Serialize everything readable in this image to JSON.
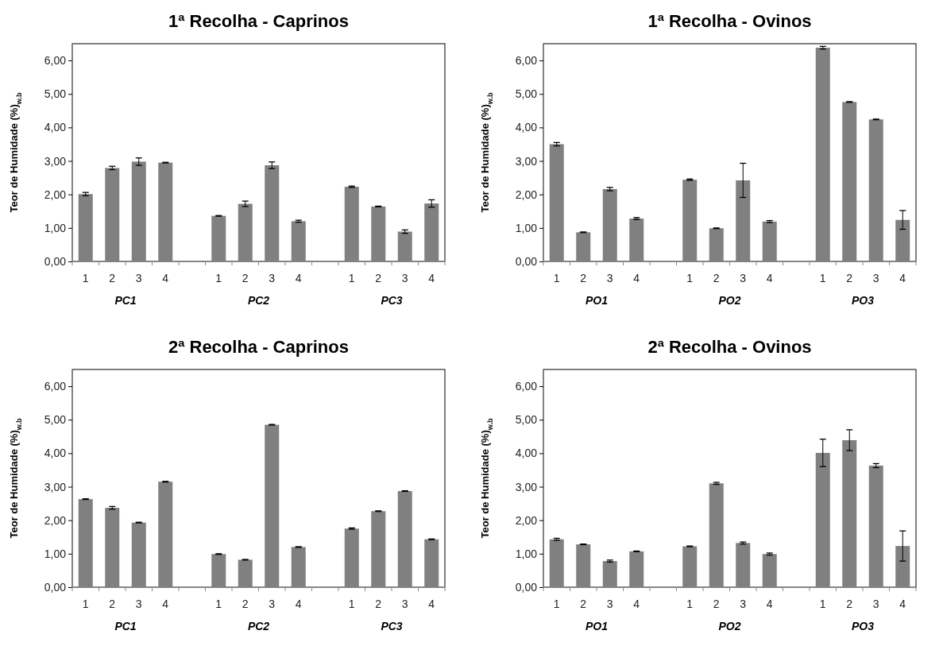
{
  "chart_data": [
    {
      "type": "bar",
      "title": "1ª Recolha - Caprinos",
      "ylabel": "Teor de Humidade (%)$_{w.b}$",
      "categories": [
        "1",
        "2",
        "3",
        "4",
        null,
        "1",
        "2",
        "3",
        "4",
        null,
        "1",
        "2",
        "3",
        "4"
      ],
      "color": "#808080",
      "values": [
        2.01,
        2.79,
        2.98,
        2.95,
        null,
        1.36,
        1.72,
        2.87,
        1.2,
        null,
        2.23,
        1.64,
        0.89,
        1.73
      ],
      "errors": [
        0.05,
        0.05,
        0.11,
        0.01,
        null,
        0.01,
        0.08,
        0.1,
        0.03,
        null,
        0.02,
        0.01,
        0.05,
        0.11
      ],
      "annotations": [
        "PC1",
        "PC2",
        "PC3"
      ],
      "ylim": [
        0,
        6.5
      ],
      "yticks": [
        {
          "value": 0,
          "label": "0,00"
        },
        {
          "value": 1,
          "label": "1,00"
        },
        {
          "value": 2,
          "label": "2,00"
        },
        {
          "value": 3,
          "label": "3,00"
        },
        {
          "value": 4,
          "label": "4,00"
        },
        {
          "value": 5,
          "label": "5,00"
        },
        {
          "value": 6,
          "label": "6,00"
        }
      ]
    },
    {
      "type": "bar",
      "title": "1ª Recolha - Ovinos",
      "ylabel": "Teor de Humidade (%)$_{w.b}$",
      "categories": [
        "1",
        "2",
        "3",
        "4",
        null,
        "1",
        "2",
        "3",
        "4",
        null,
        "1",
        "2",
        "3",
        "4"
      ],
      "color": "#808080",
      "values": [
        3.5,
        0.87,
        2.16,
        1.28,
        null,
        2.44,
        0.99,
        2.42,
        1.19,
        null,
        6.38,
        4.76,
        4.24,
        1.24
      ],
      "errors": [
        0.05,
        0.01,
        0.05,
        0.03,
        null,
        0.02,
        0.01,
        0.51,
        0.03,
        null,
        0.04,
        0.01,
        0.01,
        0.28
      ],
      "annotations": [
        "PO1",
        "PO2",
        "PO3"
      ],
      "ylim": [
        0,
        6.5
      ],
      "yticks": [
        {
          "value": 0,
          "label": "0,00"
        },
        {
          "value": 1,
          "label": "1,00"
        },
        {
          "value": 2,
          "label": "2,00"
        },
        {
          "value": 3,
          "label": "3,00"
        },
        {
          "value": 4,
          "label": "4,00"
        },
        {
          "value": 5,
          "label": "5,00"
        },
        {
          "value": 6,
          "label": "6,00"
        }
      ]
    },
    {
      "type": "bar",
      "title": "2ª Recolha - Caprinos",
      "ylabel": "Teor de Humidade (%)$_{w.b}$",
      "categories": [
        "1",
        "2",
        "3",
        "4",
        null,
        "1",
        "2",
        "3",
        "4",
        null,
        "1",
        "2",
        "3",
        "4"
      ],
      "color": "#808080",
      "values": [
        2.63,
        2.37,
        1.93,
        3.15,
        null,
        0.99,
        0.82,
        4.85,
        1.2,
        null,
        1.75,
        2.27,
        2.87,
        1.43
      ],
      "errors": [
        0.01,
        0.04,
        0.01,
        0.01,
        null,
        0.01,
        0.01,
        0.01,
        0.01,
        null,
        0.02,
        0.01,
        0.01,
        0.01
      ],
      "annotations": [
        "PC1",
        "PC2",
        "PC3"
      ],
      "ylim": [
        0,
        6.5
      ],
      "yticks": [
        {
          "value": 0,
          "label": "0,00"
        },
        {
          "value": 1,
          "label": "1,00"
        },
        {
          "value": 2,
          "label": "2,00"
        },
        {
          "value": 3,
          "label": "3,00"
        },
        {
          "value": 4,
          "label": "4,00"
        },
        {
          "value": 5,
          "label": "5,00"
        },
        {
          "value": 6,
          "label": "6,00"
        }
      ]
    },
    {
      "type": "bar",
      "title": "2ª Recolha - Ovinos",
      "ylabel": "Teor de Humidade (%)$_{w.b}$",
      "categories": [
        "1",
        "2",
        "3",
        "4",
        null,
        "1",
        "2",
        "3",
        "4",
        null,
        "1",
        "2",
        "3",
        "4"
      ],
      "color": "#808080",
      "values": [
        1.43,
        1.28,
        0.78,
        1.07,
        null,
        1.22,
        3.1,
        1.32,
        0.99,
        null,
        4.01,
        4.39,
        3.63,
        1.23
      ],
      "errors": [
        0.03,
        0.01,
        0.03,
        0.01,
        null,
        0.01,
        0.03,
        0.03,
        0.03,
        null,
        0.41,
        0.31,
        0.06,
        0.45
      ],
      "annotations": [
        "PO1",
        "PO2",
        "PO3"
      ],
      "ylim": [
        0,
        6.5
      ],
      "yticks": [
        {
          "value": 0,
          "label": "0,00"
        },
        {
          "value": 1,
          "label": "1,00"
        },
        {
          "value": 2,
          "label": "2,00"
        },
        {
          "value": 3,
          "label": "3,00"
        },
        {
          "value": 4,
          "label": "4,00"
        },
        {
          "value": 5,
          "label": "5,00"
        },
        {
          "value": 6,
          "label": "6,00"
        }
      ]
    }
  ]
}
